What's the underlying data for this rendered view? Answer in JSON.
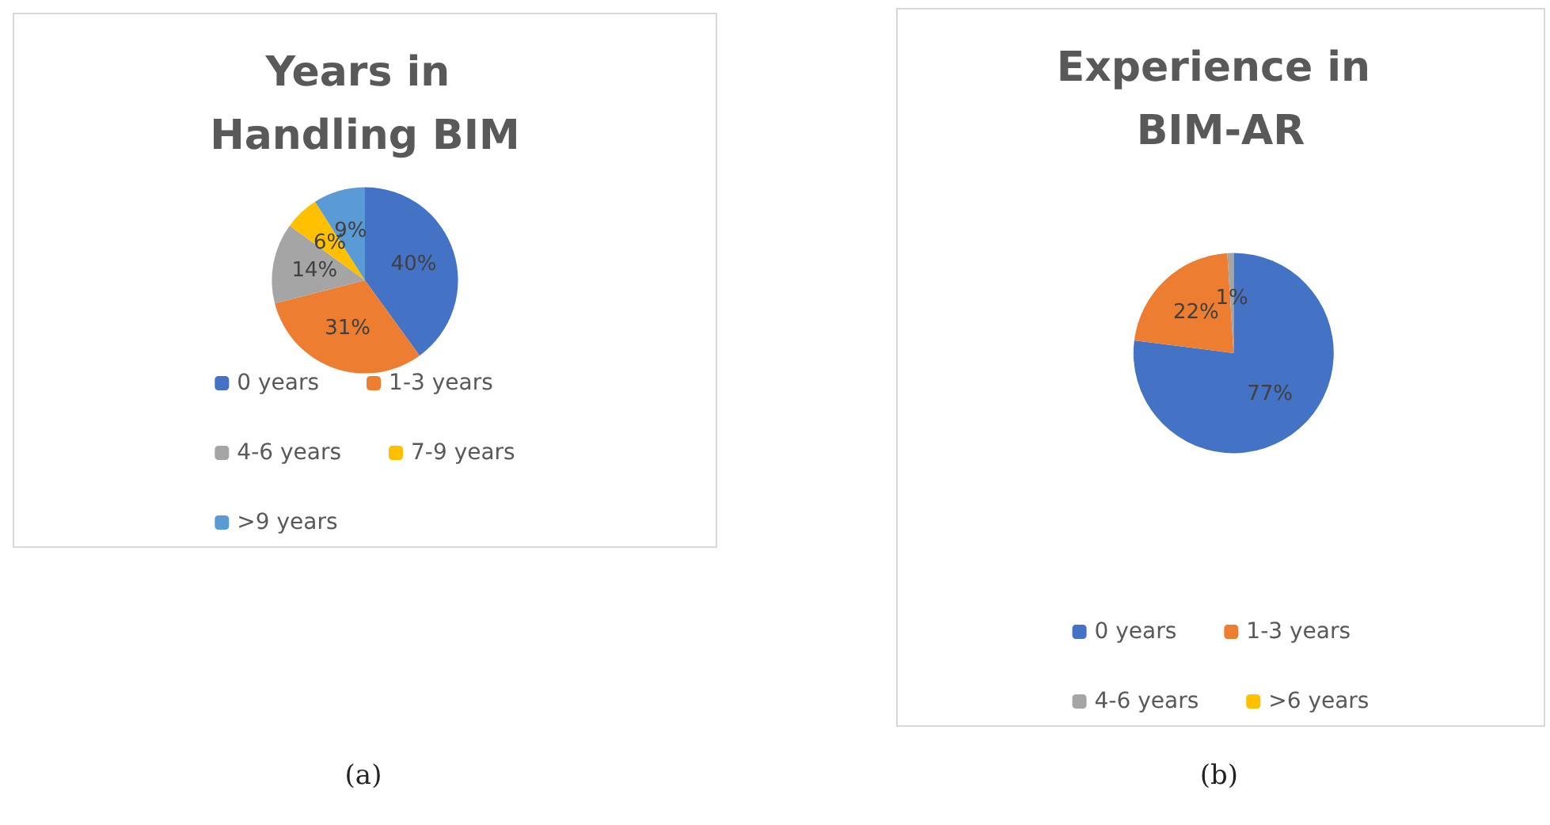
{
  "chart_data": [
    {
      "type": "pie",
      "title": "Years in Handling BIM",
      "categories": [
        "0 years",
        "1-3 years",
        "4-6 years",
        "7-9 years",
        ">9 years"
      ],
      "values": [
        40,
        31,
        14,
        6,
        9
      ],
      "value_labels": [
        "40%",
        "31%",
        "14%",
        "6%",
        "9%"
      ],
      "colors": [
        "#4472c4",
        "#ed7d31",
        "#a5a5a5",
        "#ffc000",
        "#5b9bd5"
      ],
      "legend": "bottom",
      "annotations": [
        "(a)"
      ]
    },
    {
      "type": "pie",
      "title": "Experience in BIM-AR",
      "categories": [
        "0 years",
        "1-3 years",
        "4-6 years",
        ">6 years"
      ],
      "values": [
        77,
        22,
        1,
        0
      ],
      "value_labels": [
        "77%",
        "22%",
        "1%",
        null
      ],
      "colors": [
        "#4472c4",
        "#ed7d31",
        "#a5a5a5",
        "#ffc000"
      ],
      "legend": "bottom",
      "annotations": [
        "(b)"
      ]
    }
  ]
}
